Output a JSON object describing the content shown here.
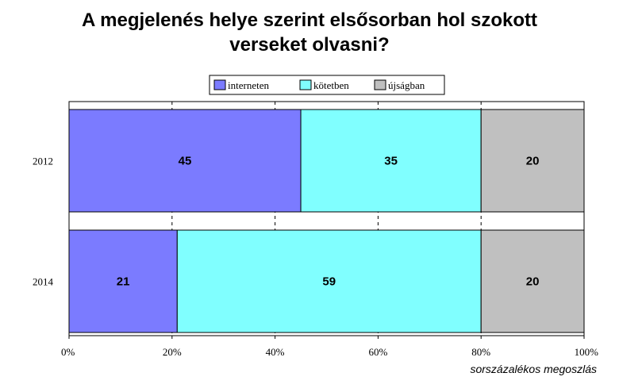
{
  "chart_data": {
    "type": "bar",
    "orientation": "horizontal",
    "stacked": true,
    "title_lines": [
      "A megjelenés helye szerint elsősorban hol szokott",
      "verseket olvasni?"
    ],
    "xlabel": "sorszázalékos megoszlás",
    "ylabel": "",
    "categories": [
      "2012",
      "2014"
    ],
    "series": [
      {
        "name": "interneten",
        "values": [
          45,
          21
        ],
        "color": "#7b7bff"
      },
      {
        "name": "kötetben",
        "values": [
          35,
          59
        ],
        "color": "#80ffff"
      },
      {
        "name": "újságban",
        "values": [
          20,
          20
        ],
        "color": "#c0c0c0"
      }
    ],
    "xlim": [
      0,
      100
    ],
    "x_ticks": [
      "0%",
      "20%",
      "40%",
      "60%",
      "80%",
      "100%"
    ],
    "grid": "vertical dashed",
    "legend_position": "top"
  }
}
